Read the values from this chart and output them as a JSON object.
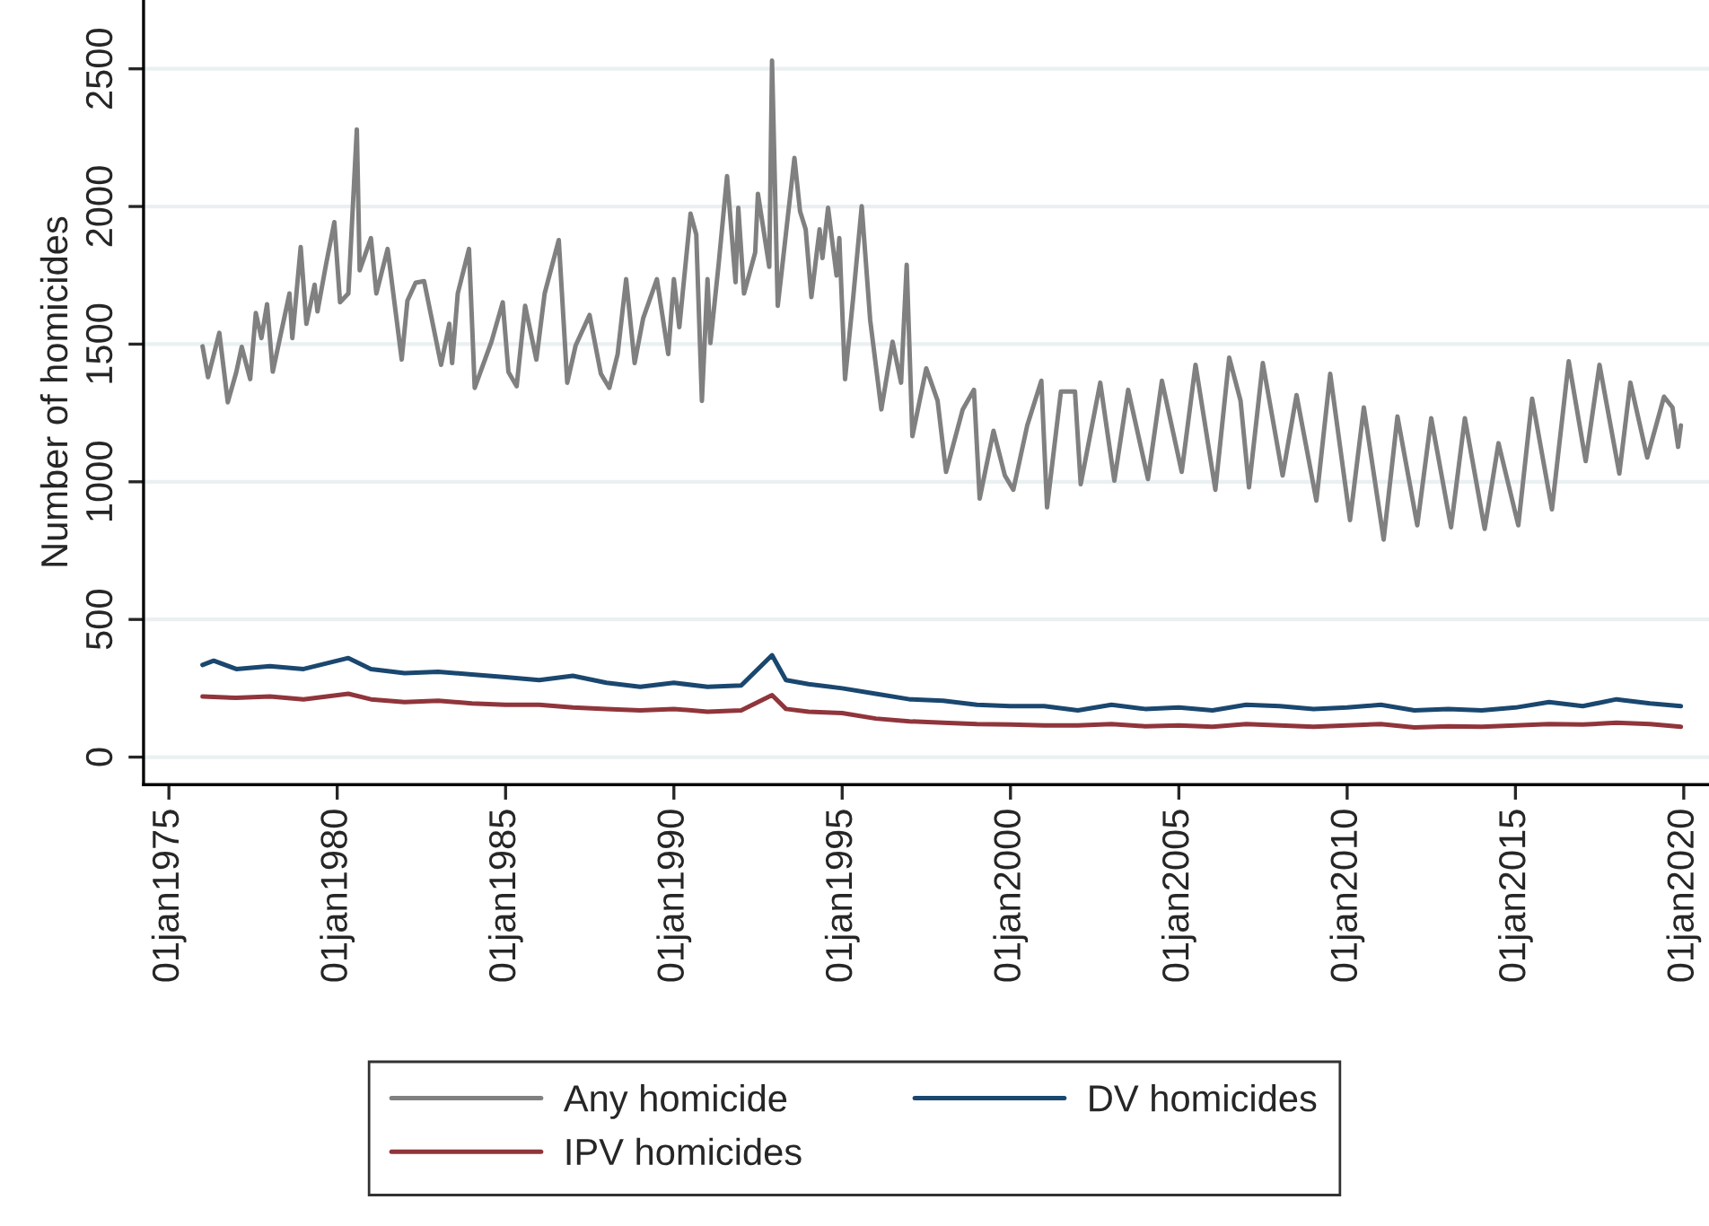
{
  "chart_data": {
    "type": "line",
    "ylabel": "Number of homicides",
    "xlim": [
      "1974-04",
      "2020-10"
    ],
    "ylim": [
      -100,
      2750
    ],
    "xticks": [
      {
        "value": "1975-01-01",
        "label": "01jan1975"
      },
      {
        "value": "1980-01-01",
        "label": "01jan1980"
      },
      {
        "value": "1985-01-01",
        "label": "01jan1985"
      },
      {
        "value": "1990-01-01",
        "label": "01jan1990"
      },
      {
        "value": "1995-01-01",
        "label": "01jan1995"
      },
      {
        "value": "2000-01-01",
        "label": "01jan2000"
      },
      {
        "value": "2005-01-01",
        "label": "01jan2005"
      },
      {
        "value": "2010-01-01",
        "label": "01jan2010"
      },
      {
        "value": "2015-01-01",
        "label": "01jan2015"
      },
      {
        "value": "2020-01-01",
        "label": "01jan2020"
      }
    ],
    "yticks": [
      0,
      500,
      1000,
      1500,
      2000,
      2500
    ],
    "grid": "y",
    "legend": "bottom",
    "marker": "none",
    "line_style": "solid",
    "series": [
      {
        "name": "Any homicide",
        "color": "#808080",
        "x": [
          "1976-01",
          "1976-03",
          "1976-07",
          "1976-10",
          "1977-01",
          "1977-03",
          "1977-06",
          "1977-08",
          "1977-10",
          "1977-12",
          "1978-02",
          "1978-08",
          "1978-09",
          "1978-12",
          "1979-02",
          "1979-05",
          "1979-06",
          "1979-09",
          "1979-12",
          "1980-02",
          "1980-05",
          "1980-08",
          "1980-09",
          "1981-01",
          "1981-03",
          "1981-07",
          "1981-12",
          "1982-02",
          "1982-05",
          "1982-08",
          "1983-02",
          "1983-05",
          "1983-06",
          "1983-08",
          "1983-12",
          "1984-02",
          "1984-08",
          "1984-12",
          "1985-02",
          "1985-05",
          "1985-08",
          "1985-12",
          "1986-03",
          "1986-08",
          "1986-11",
          "1987-02",
          "1987-07",
          "1987-11",
          "1988-02",
          "1988-05",
          "1988-08",
          "1988-11",
          "1989-02",
          "1989-07",
          "1989-11",
          "1990-01",
          "1990-03",
          "1990-07",
          "1990-09",
          "1990-11",
          "1991-01",
          "1991-02",
          "1991-05",
          "1991-08",
          "1991-11",
          "1991-12",
          "1992-02",
          "1992-06",
          "1992-07",
          "1992-11",
          "1992-12",
          "1993-02",
          "1993-04",
          "1993-08",
          "1993-10",
          "1993-12",
          "1994-02",
          "1994-05",
          "1994-06",
          "1994-08",
          "1994-11",
          "1994-12",
          "1995-02",
          "1995-05",
          "1995-08",
          "1995-11",
          "1996-03",
          "1996-07",
          "1996-10",
          "1996-12",
          "1997-02",
          "1997-07",
          "1997-11",
          "1998-02",
          "1998-08",
          "1998-12",
          "1999-02",
          "1999-07",
          "1999-11",
          "2000-02",
          "2000-07",
          "2000-12",
          "2001-02",
          "2001-07",
          "2001-12",
          "2002-02",
          "2002-09",
          "2003-02",
          "2003-07",
          "2004-02",
          "2004-07",
          "2005-02",
          "2005-07",
          "2005-10",
          "2006-02",
          "2006-07",
          "2006-11",
          "2007-02",
          "2007-07",
          "2008-02",
          "2008-07",
          "2009-02",
          "2009-07",
          "2010-02",
          "2010-07",
          "2011-02",
          "2011-07",
          "2012-02",
          "2012-07",
          "2013-02",
          "2013-07",
          "2014-02",
          "2014-07",
          "2015-02",
          "2015-07",
          "2016-02",
          "2016-08",
          "2017-02",
          "2017-07",
          "2018-02",
          "2018-06",
          "2018-12",
          "2019-06",
          "2019-09",
          "2019-11",
          "2019-12"
        ],
        "values": [
          1492,
          1380,
          1541,
          1289,
          1398,
          1490,
          1373,
          1613,
          1522,
          1645,
          1400,
          1684,
          1522,
          1853,
          1574,
          1716,
          1619,
          1788,
          1943,
          1652,
          1684,
          2280,
          1768,
          1885,
          1684,
          1846,
          1444,
          1658,
          1723,
          1729,
          1425,
          1574,
          1431,
          1684,
          1846,
          1341,
          1509,
          1652,
          1399,
          1347,
          1639,
          1444,
          1684,
          1878,
          1360,
          1496,
          1606,
          1392,
          1341,
          1464,
          1736,
          1431,
          1593,
          1736,
          1464,
          1736,
          1562,
          1974,
          1898,
          1294,
          1736,
          1504,
          1788,
          2110,
          1725,
          1995,
          1684,
          1833,
          2046,
          1781,
          2530,
          1639,
          1813,
          2176,
          1982,
          1917,
          1671,
          1917,
          1813,
          1995,
          1749,
          1885,
          1373,
          1671,
          2001,
          1587,
          1263,
          1509,
          1360,
          1788,
          1166,
          1412,
          1295,
          1036,
          1263,
          1334,
          939,
          1185,
          1023,
          971,
          1205,
          1367,
          907,
          1328,
          1328,
          991,
          1360,
          1004,
          1334,
          1010,
          1367,
          1036,
          1425,
          1231,
          971,
          1451,
          1295,
          980,
          1431,
          1023,
          1315,
          932,
          1392,
          861,
          1270,
          790,
          1237,
          842,
          1231,
          835,
          1231,
          829,
          1140,
          842,
          1302,
          900,
          1438,
          1075,
          1425,
          1030,
          1360,
          1088,
          1309,
          1270,
          1127,
          1205
        ]
      },
      {
        "name": "DV homicides",
        "color": "#1a476f",
        "x": [
          "1976-01",
          "1976-05",
          "1977-01",
          "1978-01",
          "1979-01",
          "1980-05",
          "1981-01",
          "1982-01",
          "1983-01",
          "1984-01",
          "1985-01",
          "1986-01",
          "1987-01",
          "1988-01",
          "1989-01",
          "1990-01",
          "1991-01",
          "1992-01",
          "1992-12",
          "1993-05",
          "1994-01",
          "1995-01",
          "1996-01",
          "1997-01",
          "1998-01",
          "1999-01",
          "2000-01",
          "2001-01",
          "2002-01",
          "2003-01",
          "2004-01",
          "2005-01",
          "2006-01",
          "2007-01",
          "2008-01",
          "2009-01",
          "2010-01",
          "2011-01",
          "2012-01",
          "2013-01",
          "2014-01",
          "2015-01",
          "2016-01",
          "2017-01",
          "2018-01",
          "2019-01",
          "2019-12"
        ],
        "values": [
          335,
          350,
          320,
          330,
          320,
          360,
          320,
          305,
          310,
          300,
          290,
          280,
          295,
          270,
          255,
          270,
          255,
          260,
          370,
          280,
          265,
          250,
          230,
          210,
          205,
          190,
          185,
          185,
          170,
          190,
          175,
          180,
          170,
          190,
          185,
          175,
          180,
          190,
          170,
          175,
          170,
          180,
          200,
          185,
          210,
          195,
          185
        ]
      },
      {
        "name": "IPV homicides",
        "color": "#90353b",
        "x": [
          "1976-01",
          "1977-01",
          "1978-01",
          "1979-01",
          "1980-05",
          "1981-01",
          "1982-01",
          "1983-01",
          "1984-01",
          "1985-01",
          "1986-01",
          "1987-01",
          "1988-01",
          "1989-01",
          "1990-01",
          "1991-01",
          "1992-01",
          "1992-12",
          "1993-05",
          "1994-01",
          "1995-01",
          "1996-01",
          "1997-01",
          "1998-01",
          "1999-01",
          "2000-01",
          "2001-01",
          "2002-01",
          "2003-01",
          "2004-01",
          "2005-01",
          "2006-01",
          "2007-01",
          "2008-01",
          "2009-01",
          "2010-01",
          "2011-01",
          "2012-01",
          "2013-01",
          "2014-01",
          "2015-01",
          "2016-01",
          "2017-01",
          "2018-01",
          "2019-01",
          "2019-12"
        ],
        "values": [
          220,
          215,
          220,
          210,
          230,
          210,
          200,
          205,
          195,
          190,
          190,
          180,
          175,
          170,
          175,
          165,
          170,
          225,
          175,
          165,
          160,
          140,
          130,
          125,
          120,
          118,
          115,
          115,
          120,
          112,
          115,
          110,
          120,
          115,
          110,
          115,
          120,
          108,
          112,
          110,
          115,
          120,
          118,
          125,
          120,
          110
        ]
      }
    ]
  }
}
